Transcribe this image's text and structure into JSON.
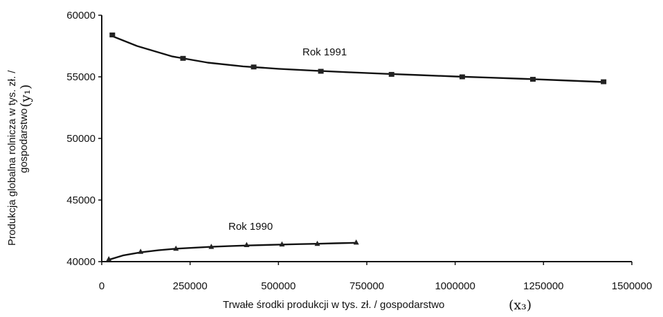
{
  "chart_data": {
    "type": "line",
    "xlabel": "Trwałe środki produkcji w tys. zł. / gospodarstwo",
    "xlabel_var": "(x₃)",
    "ylabel_line1": "Produkcja globalna rolnicza w tys. zł. /",
    "ylabel_line2": "gospodarstwo",
    "ylabel_var": "(y₁)",
    "xlim": [
      0,
      1500000
    ],
    "ylim": [
      40000,
      60000
    ],
    "x_ticks": [
      "0",
      "250000",
      "500000",
      "750000",
      "1000000",
      "1250000",
      "1500000"
    ],
    "y_ticks": [
      "40000",
      "45000",
      "50000",
      "55000",
      "60000"
    ],
    "grid": false,
    "series": [
      {
        "name": "Rok 1991",
        "marker": "square",
        "x": [
          30000,
          230000,
          430000,
          620000,
          820000,
          1020000,
          1220000,
          1420000
        ],
        "y": [
          58400,
          56500,
          55800,
          55450,
          55200,
          55000,
          54800,
          54600
        ],
        "curve_x": [
          30000,
          100000,
          200000,
          300000,
          400000,
          500000,
          600000,
          700000,
          800000,
          900000,
          1000000,
          1100000,
          1200000,
          1300000,
          1420000
        ],
        "curve_y": [
          58300,
          57500,
          56650,
          56150,
          55850,
          55650,
          55500,
          55370,
          55250,
          55140,
          55030,
          54930,
          54830,
          54720,
          54580
        ]
      },
      {
        "name": "Rok 1990",
        "marker": "triangle",
        "x": [
          20000,
          110000,
          210000,
          310000,
          410000,
          510000,
          610000,
          720000
        ],
        "y": [
          40200,
          40800,
          41050,
          41200,
          41350,
          41400,
          41450,
          41550
        ],
        "curve_x": [
          20000,
          60000,
          110000,
          160000,
          210000,
          260000,
          310000,
          360000,
          410000,
          460000,
          510000,
          560000,
          610000,
          660000,
          720000
        ],
        "curve_y": [
          40150,
          40500,
          40750,
          40920,
          41050,
          41130,
          41200,
          41260,
          41310,
          41350,
          41390,
          41420,
          41450,
          41490,
          41530
        ]
      }
    ]
  }
}
